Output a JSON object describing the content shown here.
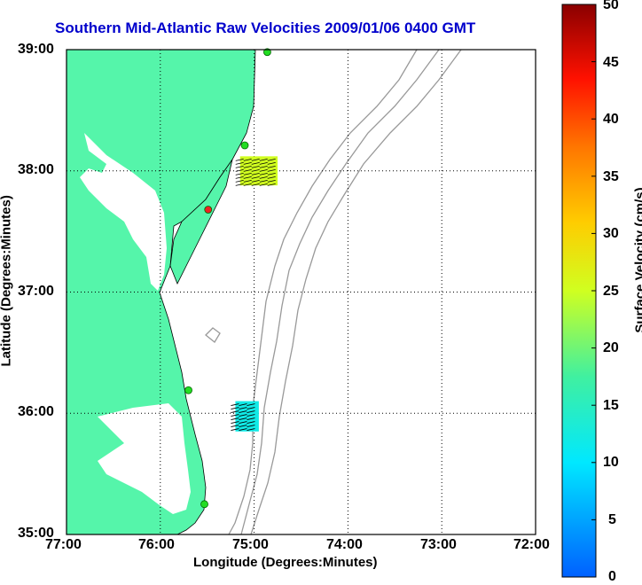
{
  "title": "Southern Mid-Atlantic Raw Velocities 2009/01/06 0400 GMT",
  "x_axis": {
    "label": "Longitude (Degrees:Minutes)",
    "ticks": [
      "77:00",
      "76:00",
      "75:00",
      "74:00",
      "73:00",
      "72:00"
    ]
  },
  "y_axis": {
    "label": "Latitude (Degrees:Minutes)",
    "ticks": [
      "39:00",
      "38:00",
      "37:00",
      "36:00",
      "35:00"
    ]
  },
  "colorbar": {
    "label": "Surface Velocity (cm/s)",
    "ticks": [
      "50",
      "45",
      "40",
      "35",
      "30",
      "25",
      "20",
      "15",
      "10",
      "5",
      "0"
    ],
    "min": 0,
    "max": 50
  },
  "colors": {
    "title": "#0000cc",
    "land": "#55f5aa",
    "bathymetry": "#999999",
    "site_active": "#22dd22",
    "site_inactive": "#ee2222"
  },
  "map": {
    "lon_range": [
      -77,
      -72
    ],
    "lat_range": [
      35,
      39
    ],
    "grid": "dotted",
    "sites": [
      {
        "lon": -74.86,
        "lat": 38.98,
        "status": "active"
      },
      {
        "lon": -75.1,
        "lat": 38.21,
        "status": "active"
      },
      {
        "lon": -75.49,
        "lat": 37.68,
        "status": "inactive"
      },
      {
        "lon": -75.7,
        "lat": 36.19,
        "status": "active"
      },
      {
        "lon": -75.53,
        "lat": 35.25,
        "status": "active"
      }
    ],
    "vector_patches": [
      {
        "lon_min": -75.15,
        "lon_max": -74.75,
        "lat_min": 37.88,
        "lat_max": 38.12,
        "velocity_cm_s": 25
      },
      {
        "lon_min": -75.2,
        "lon_max": -74.95,
        "lat_min": 35.85,
        "lat_max": 36.1,
        "velocity_cm_s": 12
      }
    ]
  }
}
